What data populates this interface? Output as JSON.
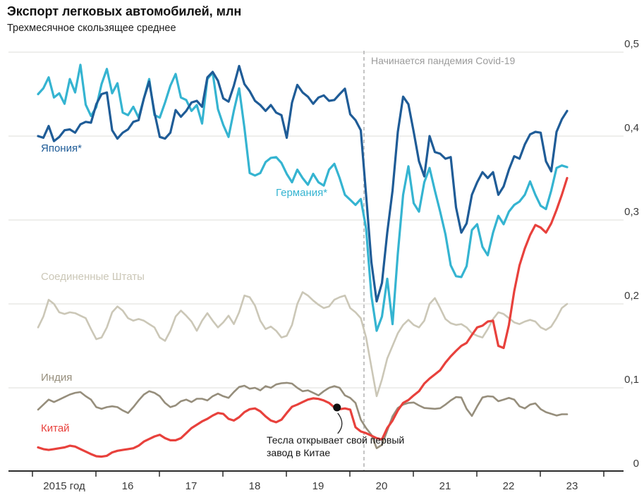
{
  "header": {
    "title": "Экспорт легковых автомобилей, млн",
    "subtitle": "Трехмесячное скользящее среднее"
  },
  "chart_data": {
    "type": "line",
    "title": "Экспорт легковых автомобилей, млн",
    "subtitle": "Трехмесячное скользящее среднее",
    "x_unit": "months, Feb 2015 - Jun 2023",
    "x_tick_labels": [
      "2015 год",
      "16",
      "17",
      "18",
      "19",
      "20",
      "21",
      "22",
      "23"
    ],
    "y_tick_labels": [
      "0",
      "0,1",
      "0,2",
      "0,3",
      "0,4",
      "0,5"
    ],
    "y_tick_values": [
      0,
      0.1,
      0.2,
      0.3,
      0.4,
      0.5
    ],
    "ylim": [
      0,
      0.5
    ],
    "grid": "horizontal",
    "legend": "inline-labels",
    "series": [
      {
        "name": "japan",
        "label": "Япония*",
        "color": "#1f5c97",
        "values": [
          0.4,
          0.398,
          0.412,
          0.394,
          0.399,
          0.407,
          0.408,
          0.404,
          0.414,
          0.417,
          0.416,
          0.438,
          0.45,
          0.452,
          0.407,
          0.397,
          0.404,
          0.408,
          0.417,
          0.419,
          0.445,
          0.465,
          0.428,
          0.399,
          0.397,
          0.404,
          0.431,
          0.423,
          0.43,
          0.44,
          0.442,
          0.435,
          0.47,
          0.4765,
          0.466,
          0.445,
          0.441,
          0.46,
          0.4835,
          0.462,
          0.4535,
          0.442,
          0.437,
          0.43,
          0.437,
          0.428,
          0.425,
          0.398,
          0.44,
          0.461,
          0.452,
          0.447,
          0.4385,
          0.446,
          0.4485,
          0.442,
          0.443,
          0.45,
          0.4565,
          0.426,
          0.419,
          0.407,
          0.33,
          0.25,
          0.203,
          0.225,
          0.285,
          0.335,
          0.405,
          0.447,
          0.438,
          0.405,
          0.37,
          0.352,
          0.4,
          0.381,
          0.379,
          0.373,
          0.375,
          0.315,
          0.285,
          0.296,
          0.33,
          0.345,
          0.357,
          0.35,
          0.357,
          0.33,
          0.34,
          0.36,
          0.376,
          0.373,
          0.39,
          0.402,
          0.405,
          0.404,
          0.37,
          0.358,
          0.405,
          0.42,
          0.43
        ]
      },
      {
        "name": "germany",
        "label": "Германия*",
        "color": "#35b4d1",
        "values": [
          0.45,
          0.457,
          0.47,
          0.446,
          0.451,
          0.4385,
          0.468,
          0.452,
          0.485,
          0.4375,
          0.424,
          0.4345,
          0.462,
          0.48,
          0.451,
          0.463,
          0.428,
          0.425,
          0.435,
          0.422,
          0.445,
          0.468,
          0.425,
          0.422,
          0.44,
          0.46,
          0.474,
          0.446,
          0.443,
          0.43,
          0.437,
          0.415,
          0.468,
          0.4757,
          0.432,
          0.4134,
          0.399,
          0.43,
          0.457,
          0.41,
          0.356,
          0.353,
          0.356,
          0.369,
          0.374,
          0.375,
          0.368,
          0.355,
          0.345,
          0.36,
          0.35,
          0.342,
          0.355,
          0.345,
          0.341,
          0.36,
          0.367,
          0.35,
          0.33,
          0.324,
          0.318,
          0.325,
          0.29,
          0.21,
          0.168,
          0.185,
          0.23,
          0.176,
          0.26,
          0.33,
          0.364,
          0.32,
          0.31,
          0.345,
          0.362,
          0.335,
          0.31,
          0.283,
          0.246,
          0.233,
          0.232,
          0.245,
          0.288,
          0.295,
          0.268,
          0.258,
          0.285,
          0.305,
          0.295,
          0.31,
          0.318,
          0.322,
          0.33,
          0.346,
          0.33,
          0.317,
          0.313,
          0.335,
          0.362,
          0.365,
          0.363
        ]
      },
      {
        "name": "united_states",
        "label": "Соединенные Штаты",
        "color": "#cbc7b7",
        "values": [
          0.172,
          0.185,
          0.205,
          0.2,
          0.19,
          0.188,
          0.19,
          0.189,
          0.186,
          0.183,
          0.17,
          0.158,
          0.16,
          0.172,
          0.19,
          0.197,
          0.192,
          0.183,
          0.18,
          0.182,
          0.18,
          0.176,
          0.172,
          0.16,
          0.156,
          0.168,
          0.185,
          0.192,
          0.186,
          0.179,
          0.168,
          0.18,
          0.189,
          0.18,
          0.172,
          0.178,
          0.186,
          0.176,
          0.19,
          0.21,
          0.208,
          0.198,
          0.18,
          0.17,
          0.173,
          0.168,
          0.16,
          0.162,
          0.175,
          0.2,
          0.214,
          0.21,
          0.204,
          0.199,
          0.195,
          0.197,
          0.205,
          0.208,
          0.21,
          0.195,
          0.19,
          0.183,
          0.16,
          0.125,
          0.09,
          0.11,
          0.135,
          0.15,
          0.165,
          0.175,
          0.181,
          0.175,
          0.172,
          0.18,
          0.2,
          0.207,
          0.195,
          0.182,
          0.177,
          0.175,
          0.176,
          0.172,
          0.165,
          0.162,
          0.16,
          0.17,
          0.182,
          0.19,
          0.188,
          0.183,
          0.178,
          0.176,
          0.179,
          0.181,
          0.179,
          0.172,
          0.169,
          0.173,
          0.183,
          0.195,
          0.2
        ]
      },
      {
        "name": "india",
        "label": "Индия",
        "color": "#968e7c",
        "values": [
          0.074,
          0.08,
          0.086,
          0.083,
          0.086,
          0.089,
          0.092,
          0.094,
          0.095,
          0.09,
          0.086,
          0.077,
          0.075,
          0.077,
          0.078,
          0.077,
          0.073,
          0.07,
          0.077,
          0.085,
          0.092,
          0.096,
          0.094,
          0.09,
          0.082,
          0.077,
          0.079,
          0.084,
          0.086,
          0.083,
          0.087,
          0.087,
          0.085,
          0.09,
          0.093,
          0.09,
          0.088,
          0.095,
          0.101,
          0.1025,
          0.099,
          0.1,
          0.097,
          0.102,
          0.1,
          0.104,
          0.1055,
          0.106,
          0.105,
          0.1,
          0.096,
          0.097,
          0.094,
          0.091,
          0.096,
          0.1,
          0.102,
          0.1,
          0.091,
          0.088,
          0.082,
          0.062,
          0.052,
          0.044,
          0.028,
          0.032,
          0.049,
          0.066,
          0.076,
          0.08,
          0.082,
          0.0825,
          0.079,
          0.076,
          0.0755,
          0.075,
          0.0757,
          0.08,
          0.085,
          0.089,
          0.0885,
          0.075,
          0.0665,
          0.078,
          0.0885,
          0.09,
          0.0895,
          0.084,
          0.086,
          0.088,
          0.086,
          0.078,
          0.0755,
          0.08,
          0.0815,
          0.0745,
          0.071,
          0.069,
          0.067,
          0.0685,
          0.0685
        ]
      },
      {
        "name": "china",
        "label": "Китай",
        "color": "#e8413c",
        "values": [
          0.029,
          0.027,
          0.026,
          0.027,
          0.028,
          0.029,
          0.031,
          0.03,
          0.027,
          0.024,
          0.021,
          0.0185,
          0.018,
          0.019,
          0.023,
          0.025,
          0.026,
          0.027,
          0.028,
          0.031,
          0.036,
          0.039,
          0.042,
          0.044,
          0.04,
          0.0375,
          0.0375,
          0.04,
          0.046,
          0.052,
          0.056,
          0.06,
          0.063,
          0.067,
          0.07,
          0.069,
          0.063,
          0.061,
          0.065,
          0.071,
          0.0745,
          0.0755,
          0.072,
          0.066,
          0.061,
          0.059,
          0.062,
          0.07,
          0.0775,
          0.08,
          0.083,
          0.086,
          0.0875,
          0.0868,
          0.085,
          0.082,
          0.0766,
          0.0745,
          0.0755,
          0.074,
          0.053,
          0.048,
          0.046,
          0.043,
          0.04,
          0.0385,
          0.052,
          0.061,
          0.073,
          0.082,
          0.0855,
          0.091,
          0.096,
          0.105,
          0.111,
          0.116,
          0.121,
          0.13,
          0.1375,
          0.144,
          0.15,
          0.1535,
          0.163,
          0.172,
          0.174,
          0.179,
          0.18,
          0.15,
          0.1475,
          0.175,
          0.215,
          0.246,
          0.266,
          0.282,
          0.294,
          0.291,
          0.285,
          0.296,
          0.312,
          0.33,
          0.35
        ]
      }
    ],
    "annotations": {
      "covid": {
        "text": "Начинается пандемия Covid-19",
        "month_index": 61.6
      },
      "tesla": {
        "text": "Тесла открывает свой первый завод в Китае",
        "month_index": 56.5,
        "value": 0.0766
      }
    }
  }
}
